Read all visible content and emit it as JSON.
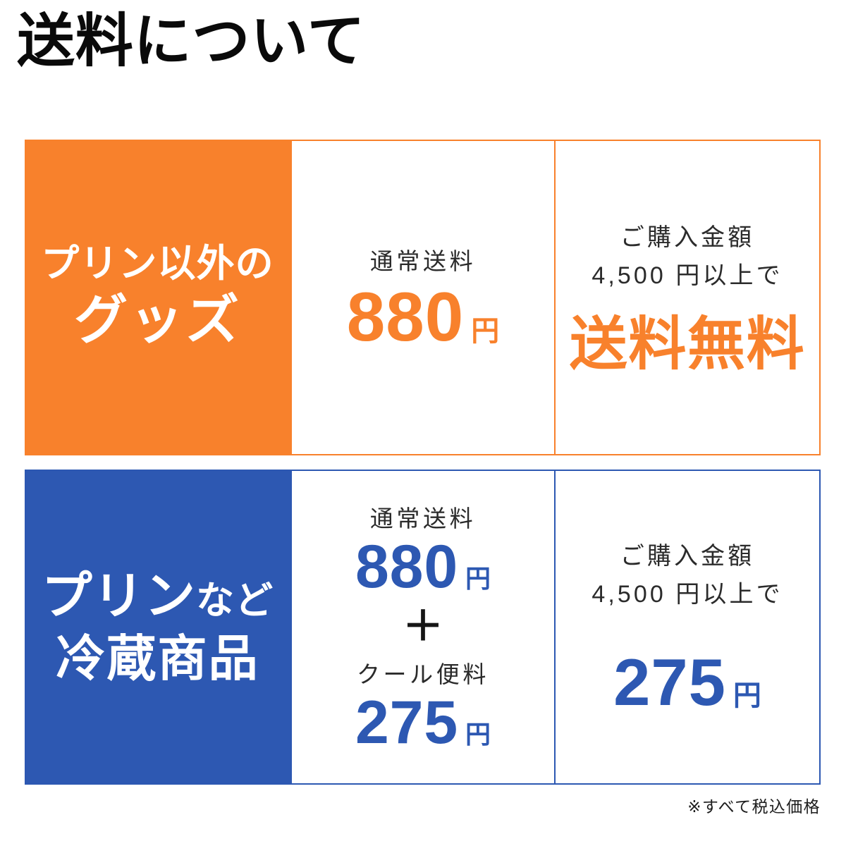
{
  "page": {
    "title": "送料について",
    "footnote": "※すべて税込価格"
  },
  "colors": {
    "orange": "#f8812c",
    "blue": "#2d58b2"
  },
  "rows": [
    {
      "theme": "orange",
      "category_line1": "プリン以外の",
      "category_line2": "グッズ",
      "shipping": {
        "label": "通常送料",
        "price": "880",
        "unit": "円"
      },
      "promo": {
        "condition_line1": "ご購入金額",
        "condition_line2": "4,500 円以上で",
        "highlight": "送料無料"
      }
    },
    {
      "theme": "blue",
      "category_line1_large": "プリン",
      "category_line1_small": "など",
      "category_line2": "冷蔵商品",
      "shipping": {
        "label": "通常送料",
        "price": "880",
        "unit": "円",
        "plus": "＋",
        "extra_label": "クール便料",
        "extra_price": "275",
        "extra_unit": "円"
      },
      "promo": {
        "condition_line1": "ご購入金額",
        "condition_line2": "4,500 円以上で",
        "price": "275",
        "unit": "円"
      }
    }
  ]
}
